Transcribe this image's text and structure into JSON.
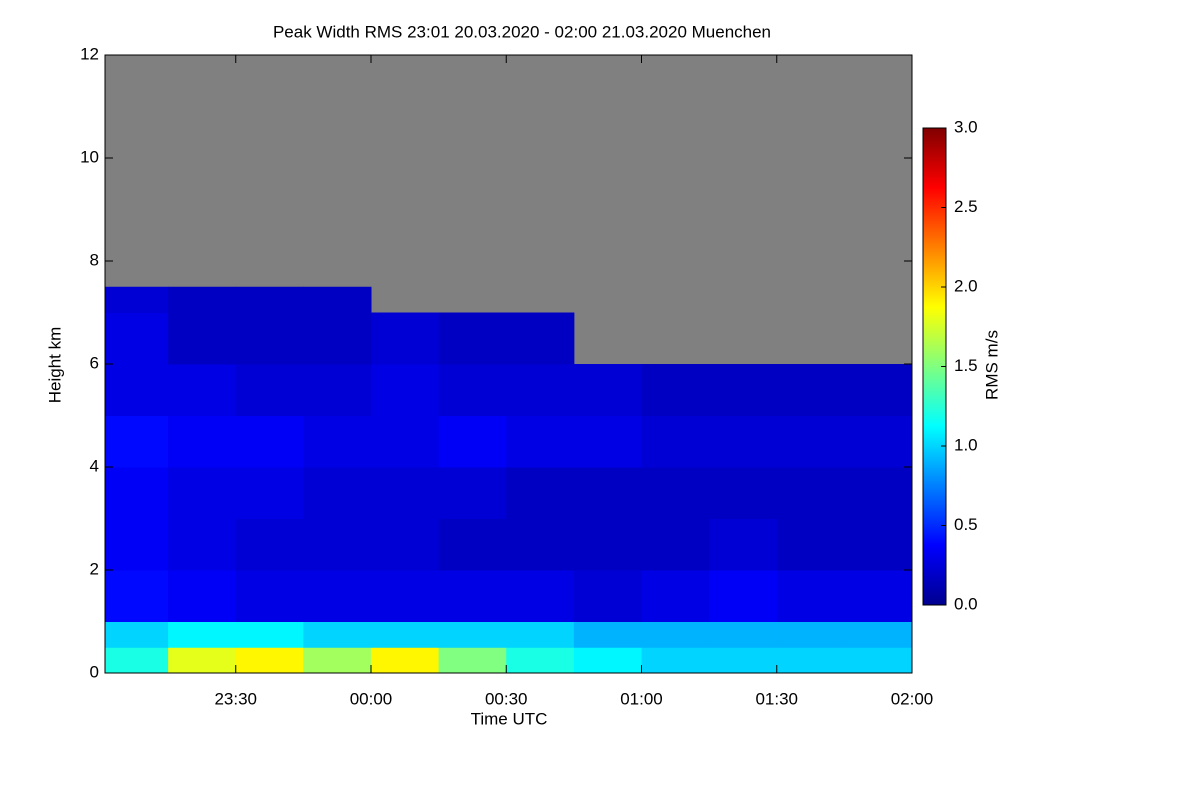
{
  "chart_data": {
    "type": "heatmap",
    "title": "Peak Width RMS   23:01 20.03.2020 - 02:00 21.03.2020 Muenchen",
    "x_label": "Time UTC",
    "y_label": "Height km",
    "colorbar_label": "RMS m/s",
    "x": [
      "23:01",
      "23:15",
      "23:30",
      "23:45",
      "00:00",
      "00:15",
      "00:30",
      "00:45",
      "01:00",
      "01:15",
      "01:30",
      "01:45",
      "02:00"
    ],
    "y": [
      0,
      0.5,
      1,
      2,
      3,
      4,
      5,
      6,
      7,
      7.5
    ],
    "z": [
      [
        1.2,
        1.8,
        1.9,
        1.6,
        1.9,
        1.5,
        1.2,
        1.1,
        1.0,
        1.0,
        1.0,
        1.0
      ],
      [
        1.0,
        1.1,
        1.1,
        1.0,
        1.0,
        1.0,
        1.0,
        0.9,
        0.9,
        0.9,
        0.9,
        0.9
      ],
      [
        0.4,
        0.35,
        0.3,
        0.3,
        0.3,
        0.3,
        0.3,
        0.25,
        0.3,
        0.35,
        0.3,
        0.3
      ],
      [
        0.35,
        0.3,
        0.25,
        0.25,
        0.25,
        0.2,
        0.2,
        0.2,
        0.2,
        0.25,
        0.2,
        0.2
      ],
      [
        0.35,
        0.3,
        0.3,
        0.25,
        0.25,
        0.25,
        0.2,
        0.2,
        0.2,
        0.2,
        0.2,
        0.2
      ],
      [
        0.4,
        0.35,
        0.35,
        0.3,
        0.3,
        0.35,
        0.3,
        0.3,
        0.25,
        0.25,
        0.25,
        0.25
      ],
      [
        0.3,
        0.3,
        0.25,
        0.25,
        0.3,
        0.25,
        0.25,
        0.25,
        0.2,
        0.2,
        0.2,
        0.2
      ],
      [
        0.3,
        0.2,
        0.2,
        0.2,
        0.25,
        0.2,
        0.2,
        null,
        null,
        null,
        null,
        null
      ],
      [
        0.25,
        0.2,
        0.2,
        0.2,
        null,
        null,
        null,
        null,
        null,
        null,
        null,
        null
      ]
    ],
    "missing_color": "#808080",
    "colormap": "jet",
    "xlim": [
      "23:01",
      "02:00"
    ],
    "xticks": [
      "23:30",
      "00:00",
      "00:30",
      "01:00",
      "01:30",
      "02:00"
    ],
    "ylim": [
      0,
      12
    ],
    "yticks": [
      0,
      2,
      4,
      6,
      8,
      10,
      12
    ],
    "clim": [
      0,
      3
    ],
    "cticks": [
      {
        "value": 0,
        "label": "0.0"
      },
      0.5,
      {
        "value": 1,
        "label": "1.0"
      },
      1.5,
      {
        "value": 2,
        "label": "2.0"
      },
      2.5,
      {
        "value": 3,
        "label": "3.0"
      }
    ]
  }
}
